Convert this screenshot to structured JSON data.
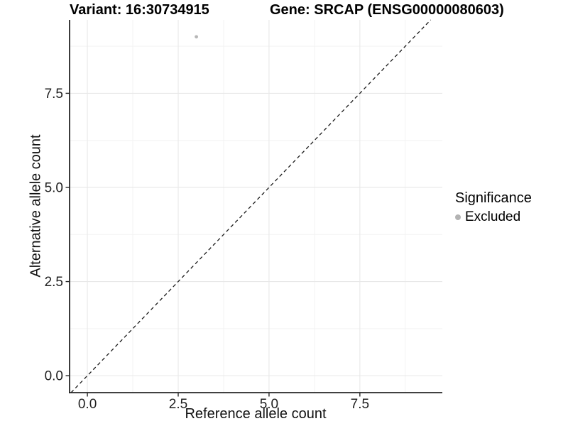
{
  "figure": {
    "title_left": "Variant: 16:30734915",
    "title_right": "Gene: SRCAP (ENSG00000080603)"
  },
  "chart_data": {
    "type": "scatter",
    "title": "Variant: 16:30734915 — Gene: SRCAP (ENSG00000080603)",
    "xlabel": "Reference allele count",
    "ylabel": "Alternative allele count",
    "xlim": [
      -0.49,
      9.77
    ],
    "ylim": [
      -0.45,
      9.45
    ],
    "xticks": {
      "values": [
        0,
        2.5,
        5,
        7.5
      ],
      "labels": [
        "0.0",
        "2.5",
        "5.0",
        "7.5"
      ]
    },
    "yticks": {
      "values": [
        0,
        2.5,
        5,
        7.5
      ],
      "labels": [
        "0.0",
        "2.5",
        "5.0",
        "7.5"
      ]
    },
    "minor_xticks": [
      1.25,
      3.75,
      6.25,
      8.75
    ],
    "minor_yticks": [
      1.25,
      3.75,
      6.25,
      8.75
    ],
    "grid": "major+minor",
    "points": [
      {
        "x": 3,
        "y": 9,
        "series": "Excluded",
        "color": "#b6b6b6"
      }
    ],
    "reference_line": {
      "type": "identity",
      "style": "dashed",
      "color": "#1a1a1a"
    },
    "legend": {
      "title": "Significance",
      "position": "right",
      "items": [
        {
          "label": "Excluded",
          "color": "#b3b3b3",
          "marker": "circle"
        }
      ]
    }
  },
  "colors": {
    "background": "#ffffff",
    "axis_line": "#262626",
    "tick_label": "#1f1f1f",
    "grid_major": "#e8e8e8",
    "grid_minor": "#f3f3f3",
    "point": "#b6b6b6",
    "legend_key": "#b3b3b3"
  }
}
